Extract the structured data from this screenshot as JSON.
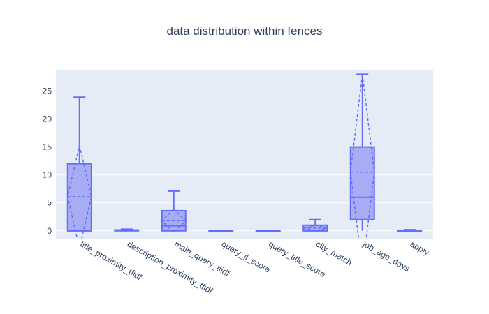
{
  "chart_data": {
    "type": "box",
    "title": "data distribution within fences",
    "xlabel": "",
    "ylabel": "",
    "ylim": [
      -1.4,
      28.8
    ],
    "yticks": [
      0,
      5,
      10,
      15,
      20,
      25
    ],
    "grid": true,
    "legend": "none",
    "colors": {
      "series": "#636efa",
      "fill": "#a8acf5",
      "plot_bg": "#e5ecf6",
      "grid": "#ffffff",
      "text": "#2a3f5f"
    },
    "boxes": [
      {
        "name": "title_proximity_tfidf",
        "min": 0,
        "q1": 0,
        "median": 0,
        "q3": 12,
        "max": 23.9,
        "mean": 6.1,
        "sd": 9.2
      },
      {
        "name": "description_proximity_tfidf",
        "min": 0,
        "q1": 0,
        "median": 0.05,
        "q3": 0.15,
        "max": 0.3,
        "mean": 0.1,
        "sd": 0.1
      },
      {
        "name": "main_query_tfidf",
        "min": 0,
        "q1": 0,
        "median": 0.9,
        "q3": 3.6,
        "max": 7.1,
        "mean": 1.8,
        "sd": 2.1
      },
      {
        "name": "query_jl_score",
        "min": 0,
        "q1": 0,
        "median": 0,
        "q3": 0.05,
        "max": 0.05,
        "mean": 0.02,
        "sd": 0.02
      },
      {
        "name": "query_title_score",
        "min": 0,
        "q1": 0,
        "median": 0,
        "q3": 0.08,
        "max": 0.08,
        "mean": 0.03,
        "sd": 0.02
      },
      {
        "name": "city_match",
        "min": 0,
        "q1": 0,
        "median": 0,
        "q3": 1,
        "max": 2,
        "mean": 0.5,
        "sd": 0.5
      },
      {
        "name": "job_age_days",
        "min": 0,
        "q1": 2,
        "median": 6,
        "q3": 15,
        "max": 28,
        "mean": 10.5,
        "sd": 17.5
      },
      {
        "name": "apply",
        "min": 0,
        "q1": 0,
        "median": 0,
        "q3": 0.1,
        "max": 0.2,
        "mean": 0.08,
        "sd": 0.1
      }
    ]
  }
}
